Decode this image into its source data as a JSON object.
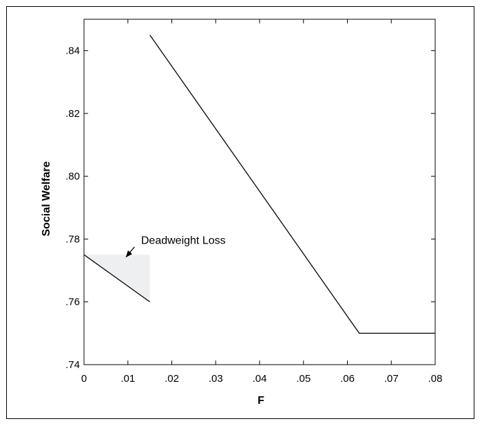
{
  "chart_data": {
    "type": "line",
    "title": "",
    "xlabel": "F",
    "ylabel": "Social Welfare",
    "xlim": [
      0,
      0.08
    ],
    "ylim": [
      0.74,
      0.85
    ],
    "xticks": [
      {
        "value": 0,
        "label": "0"
      },
      {
        "value": 0.01,
        "label": ".01"
      },
      {
        "value": 0.02,
        "label": ".02"
      },
      {
        "value": 0.03,
        "label": ".03"
      },
      {
        "value": 0.04,
        "label": ".04"
      },
      {
        "value": 0.05,
        "label": ".05"
      },
      {
        "value": 0.06,
        "label": ".06"
      },
      {
        "value": 0.07,
        "label": ".07"
      },
      {
        "value": 0.08,
        "label": ".08"
      }
    ],
    "yticks": [
      {
        "value": 0.74,
        "label": ".74"
      },
      {
        "value": 0.76,
        "label": ".76"
      },
      {
        "value": 0.78,
        "label": ".78"
      },
      {
        "value": 0.8,
        "label": ".80"
      },
      {
        "value": 0.82,
        "label": ".82"
      },
      {
        "value": 0.84,
        "label": ".84"
      }
    ],
    "grid": false,
    "series": [
      {
        "x": [
          0,
          0.015
        ],
        "y": [
          0.775,
          0.76
        ]
      },
      {
        "x": [
          0.015,
          0.0627,
          0.08
        ],
        "y": [
          0.845,
          0.75,
          0.75
        ]
      }
    ],
    "shaded_region": {
      "x": [
        0,
        0.015,
        0.015
      ],
      "y": [
        0.775,
        0.775,
        0.76
      ],
      "color": "#eeeff1"
    },
    "annotation": {
      "text": "Deadweight Loss",
      "text_at": [
        0.013,
        0.7785
      ],
      "arrow_from": [
        0.0115,
        0.7775
      ],
      "arrow_to": [
        0.0096,
        0.7743
      ]
    },
    "line_color": "#000000"
  }
}
